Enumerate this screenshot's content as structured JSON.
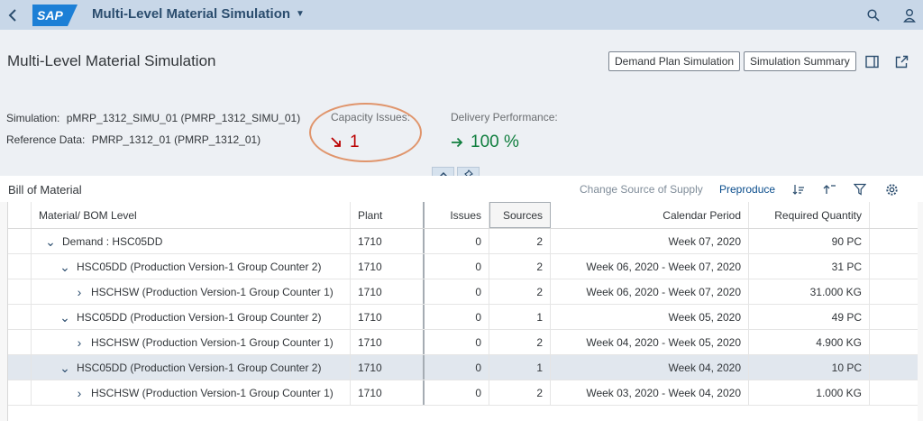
{
  "shell": {
    "logo": "SAP",
    "app_title": "Multi-Level Material Simulation"
  },
  "header": {
    "title": "Multi-Level Material Simulation",
    "buttons": {
      "demand_plan": "Demand Plan Simulation",
      "summary": "Simulation Summary"
    },
    "simulation_label": "Simulation:",
    "simulation_value": "pMRP_1312_SIMU_01 (PMRP_1312_SIMU_01)",
    "reference_label": "Reference Data:",
    "reference_value": "PMRP_1312_01 (PMRP_1312_01)",
    "capacity_label": "Capacity Issues:",
    "capacity_value": "1",
    "delivery_label": "Delivery Performance:",
    "delivery_value": "100 %",
    "colors": {
      "negative": "#bb0000",
      "positive": "#107e3e",
      "highlight": "#e0956c"
    }
  },
  "toolbar": {
    "title": "Bill of Material",
    "change_source": "Change Source of Supply",
    "preproduce": "Preproduce"
  },
  "table": {
    "columns": [
      "Material/ BOM Level",
      "Plant",
      "Issues",
      "Sources",
      "Calendar Period",
      "Required Quantity"
    ],
    "rows": [
      {
        "indent": 0,
        "material": "Demand : HSC05DD",
        "plant": "1710",
        "issues": "0",
        "sources": "2",
        "period": "Week 07, 2020",
        "qty": "90 PC",
        "expanded": true,
        "selected": false
      },
      {
        "indent": 1,
        "material": "HSC05DD (Production Version-1 Group Counter 2)",
        "plant": "1710",
        "issues": "0",
        "sources": "2",
        "period": "Week 06, 2020 - Week 07, 2020",
        "qty": "31 PC",
        "expanded": true,
        "selected": false
      },
      {
        "indent": 2,
        "material": "HSCHSW (Production Version-1 Group Counter 1)",
        "plant": "1710",
        "issues": "0",
        "sources": "2",
        "period": "Week 06, 2020 - Week 07, 2020",
        "qty": "31.000 KG",
        "expanded": false,
        "selected": false
      },
      {
        "indent": 1,
        "material": "HSC05DD (Production Version-1 Group Counter 2)",
        "plant": "1710",
        "issues": "0",
        "sources": "1",
        "period": "Week 05, 2020",
        "qty": "49 PC",
        "expanded": true,
        "selected": false
      },
      {
        "indent": 2,
        "material": "HSCHSW (Production Version-1 Group Counter 1)",
        "plant": "1710",
        "issues": "0",
        "sources": "2",
        "period": "Week 04, 2020 - Week 05, 2020",
        "qty": "4.900 KG",
        "expanded": false,
        "selected": false
      },
      {
        "indent": 1,
        "material": "HSC05DD (Production Version-1 Group Counter 2)",
        "plant": "1710",
        "issues": "0",
        "sources": "1",
        "period": "Week 04, 2020",
        "qty": "10 PC",
        "expanded": true,
        "selected": true
      },
      {
        "indent": 2,
        "material": "HSCHSW (Production Version-1 Group Counter 1)",
        "plant": "1710",
        "issues": "0",
        "sources": "2",
        "period": "Week 03, 2020 - Week 04, 2020",
        "qty": "1.000 KG",
        "expanded": false,
        "selected": false
      }
    ]
  }
}
